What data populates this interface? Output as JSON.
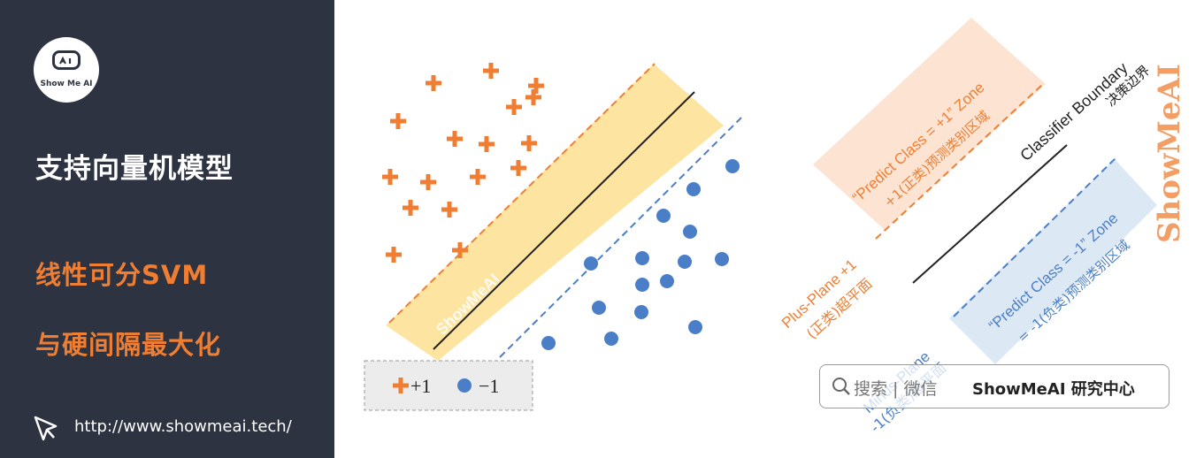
{
  "sidebar": {
    "logo_text": "Show Me AI",
    "title": "支持向量机模型",
    "subtitle_line1": "线性可分SVM",
    "subtitle_line2": "与硬间隔最大化",
    "url": "http://www.showmeai.tech/"
  },
  "diagram": {
    "margin_watermark": "ShowMeAI",
    "legend_plus_symbol": "+1",
    "legend_minus_symbol": "−1",
    "classifier_boundary_en": "Classifier Boundary",
    "classifier_boundary_cn": "决策边界",
    "plus_zone_line1": "“Predict Class = +1” Zone",
    "plus_zone_line2": "+1(正类)预测类别区域",
    "minus_zone_line1": "“Predict Class = -1” Zone",
    "minus_zone_line2": "= -1(负类)预测类别区域",
    "plus_plane_line1": "Plus-Plane +1",
    "plus_plane_line2": "(正类)超平面",
    "minus_plane_line1": "Minus-Plane",
    "minus_plane_line2": "-1(负类)超平面",
    "vertical_watermark": "ShowMeAI",
    "colors": {
      "plus": "#f07e32",
      "minus": "#4a7fc8",
      "margin_band": "#fde4a0",
      "plus_zone": "#fde3d2",
      "minus_zone": "#dde8f5"
    }
  },
  "search": {
    "placeholder": "搜索 | 微信",
    "brand": "ShowMeAI 研究中心"
  }
}
